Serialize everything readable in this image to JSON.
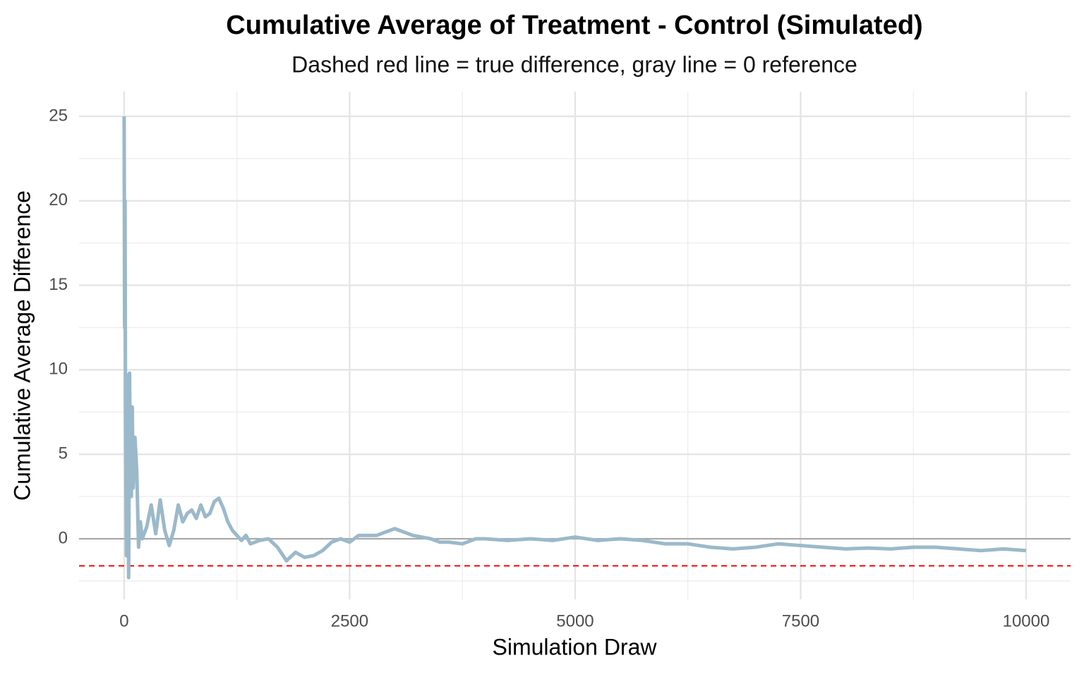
{
  "chart_data": {
    "type": "line",
    "title": "Cumulative Average of Treatment - Control (Simulated)",
    "subtitle": "Dashed red line = true difference, gray line = 0 reference",
    "x_label": "Simulation Draw",
    "y_label": "Cumulative Average Difference",
    "x": [
      0,
      5,
      10,
      15,
      20,
      25,
      30,
      40,
      50,
      60,
      70,
      80,
      90,
      100,
      120,
      140,
      160,
      180,
      200,
      250,
      300,
      350,
      400,
      450,
      500,
      550,
      600,
      650,
      700,
      750,
      800,
      850,
      900,
      950,
      1000,
      1050,
      1100,
      1150,
      1200,
      1250,
      1300,
      1350,
      1400,
      1500,
      1600,
      1700,
      1800,
      1900,
      2000,
      2100,
      2200,
      2300,
      2400,
      2500,
      2600,
      2700,
      2800,
      2900,
      3000,
      3100,
      3200,
      3300,
      3400,
      3500,
      3600,
      3750,
      3900,
      4000,
      4250,
      4500,
      4750,
      5000,
      5250,
      5500,
      5750,
      6000,
      6250,
      6500,
      6750,
      7000,
      7250,
      7500,
      7750,
      8000,
      8250,
      8500,
      8750,
      9000,
      9250,
      9500,
      9750,
      10000
    ],
    "values": [
      25,
      12.5,
      20,
      8,
      3,
      -1,
      9.7,
      5,
      -2.3,
      9.8,
      4,
      2.5,
      7.8,
      3,
      6,
      4,
      -0.5,
      1,
      0,
      0.7,
      2,
      0.3,
      2.3,
      0.5,
      -0.4,
      0.5,
      2,
      1,
      1.5,
      1.7,
      1.2,
      2,
      1.3,
      1.5,
      2.2,
      2.4,
      1.8,
      1,
      0.5,
      0.2,
      -0.1,
      0.2,
      -0.3,
      -0.1,
      0,
      -0.5,
      -1.3,
      -0.8,
      -1.1,
      -1,
      -0.7,
      -0.2,
      0,
      -0.2,
      0.2,
      0.2,
      0.2,
      0.4,
      0.6,
      0.4,
      0.2,
      0.1,
      0,
      -0.2,
      -0.2,
      -0.3,
      0,
      0,
      -0.1,
      0,
      -0.1,
      0.1,
      -0.1,
      0,
      -0.1,
      -0.3,
      -0.3,
      -0.5,
      -0.6,
      -0.5,
      -0.3,
      -0.4,
      -0.5,
      -0.6,
      -0.55,
      -0.6,
      -0.5,
      -0.5,
      -0.6,
      -0.7,
      -0.6,
      -0.7
    ],
    "color": "#9bb9ca",
    "xlim": [
      -500,
      10493
    ],
    "ylim": [
      -3.59,
      26.46
    ],
    "xticks": [
      0,
      2500,
      5000,
      7500,
      10000
    ],
    "yticks": [
      0,
      5,
      10,
      15,
      20,
      25
    ],
    "grid": true,
    "reference_lines": [
      {
        "value": 0,
        "color": "#a6a6a6",
        "style": "solid"
      },
      {
        "value": -1.6,
        "color": "#ff0000",
        "style": "dashed"
      }
    ]
  }
}
